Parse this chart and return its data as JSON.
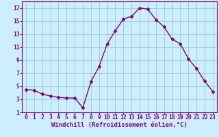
{
  "x": [
    0,
    1,
    2,
    3,
    4,
    5,
    6,
    7,
    8,
    9,
    10,
    11,
    12,
    13,
    14,
    15,
    16,
    17,
    18,
    19,
    20,
    21,
    22,
    23
  ],
  "y": [
    4.5,
    4.4,
    3.8,
    3.5,
    3.3,
    3.2,
    3.2,
    1.7,
    5.7,
    8.0,
    11.5,
    13.5,
    15.3,
    15.7,
    17.0,
    16.8,
    15.2,
    14.1,
    12.2,
    11.5,
    9.2,
    7.7,
    5.8,
    4.2
  ],
  "line_color": "#800080",
  "marker": "D",
  "marker_size": 2.5,
  "bg_color": "#cceeff",
  "grid_color": "#99cccc",
  "xlabel": "Windchill (Refroidissement éolien,°C)",
  "ylim": [
    1,
    18
  ],
  "xlim": [
    -0.5,
    23.5
  ],
  "yticks": [
    1,
    3,
    5,
    7,
    9,
    11,
    13,
    15,
    17
  ],
  "xticks": [
    0,
    1,
    2,
    3,
    4,
    5,
    6,
    7,
    8,
    9,
    10,
    11,
    12,
    13,
    14,
    15,
    16,
    17,
    18,
    19,
    20,
    21,
    22,
    23
  ],
  "tick_color": "#800080",
  "label_color": "#800080",
  "xlabel_fontsize": 6.5,
  "tick_fontsize": 5.8,
  "spine_color": "#800080"
}
